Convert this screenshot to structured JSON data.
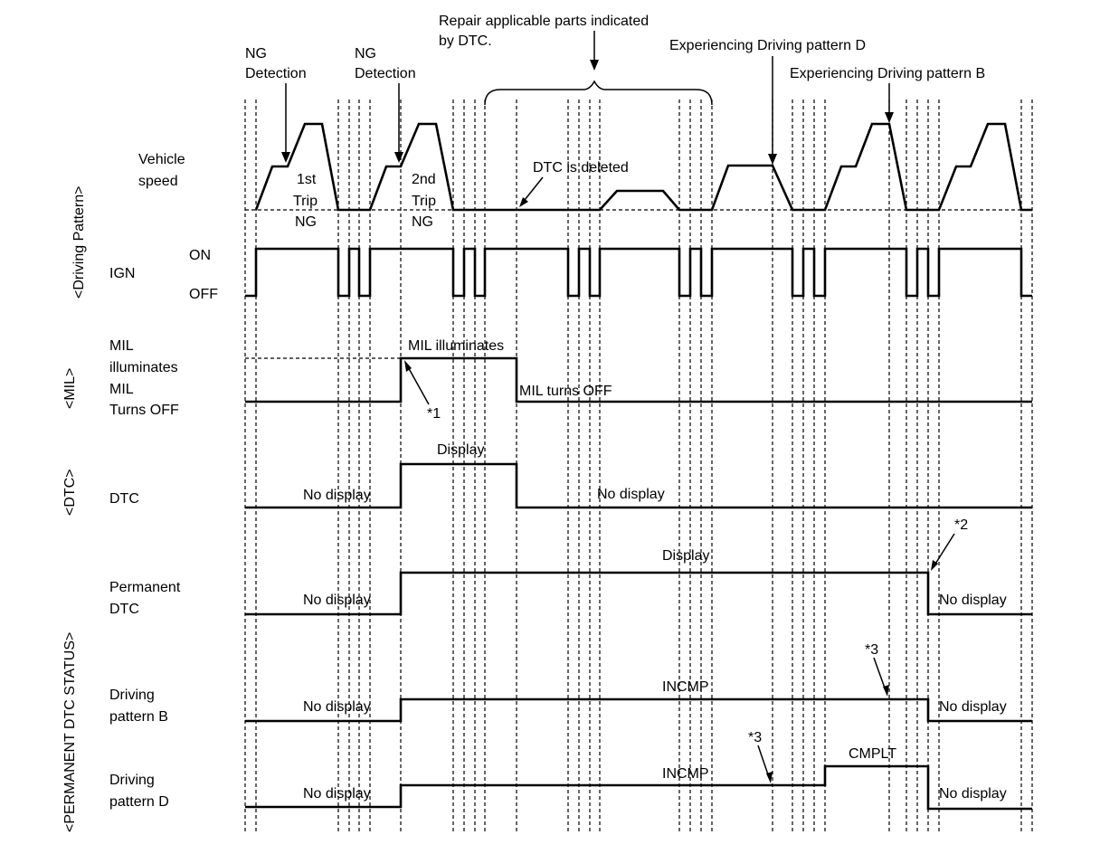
{
  "groups": {
    "driving_pattern": "<Driving Pattern>",
    "mil": "<MIL>",
    "dtc": "<DTC>",
    "permanent": "<PERMANENT DTC STATUS>"
  },
  "rows": {
    "vehicle_speed": [
      "Vehicle",
      "speed"
    ],
    "ign": "IGN",
    "ign_on": "ON",
    "ign_off": "OFF",
    "mil": [
      "MIL",
      "illuminates",
      "MIL",
      "Turns OFF"
    ],
    "dtc": "DTC",
    "permanent_dtc": [
      "Permanent",
      "DTC"
    ],
    "pattern_b": [
      "Driving",
      "pattern B"
    ],
    "pattern_d": [
      "Driving",
      "pattern D"
    ]
  },
  "annotations": {
    "ng1": [
      "NG",
      "Detection"
    ],
    "ng2": [
      "NG",
      "Detection"
    ],
    "repair": [
      "Repair applicable parts indicated",
      "by DTC."
    ],
    "exp_d": "Experiencing Driving pattern D",
    "exp_b": "Experiencing Driving pattern B",
    "trip1": [
      "1st",
      "Trip",
      "NG"
    ],
    "trip2": [
      "2nd",
      "Trip",
      "NG"
    ],
    "dtc_deleted": "DTC is deleted",
    "mil_on": "MIL illuminates",
    "mil_off": "MIL turns OFF",
    "note1": "*1",
    "note2": "*2",
    "note3a": "*3",
    "note3b": "*3",
    "dtc_display": "Display",
    "dtc_nodisplay1": "No display",
    "dtc_nodisplay2": "No display",
    "perm_display": "Display",
    "perm_nodisplay1": "No display",
    "perm_nodisplay2": "No display",
    "b_incmp": "INCMP",
    "b_nodisplay1": "No display",
    "b_nodisplay2": "No display",
    "d_incmp": "INCMP",
    "d_cmplt": "CMPLT",
    "d_nodisplay1": "No display",
    "d_nodisplay2": "No display"
  }
}
